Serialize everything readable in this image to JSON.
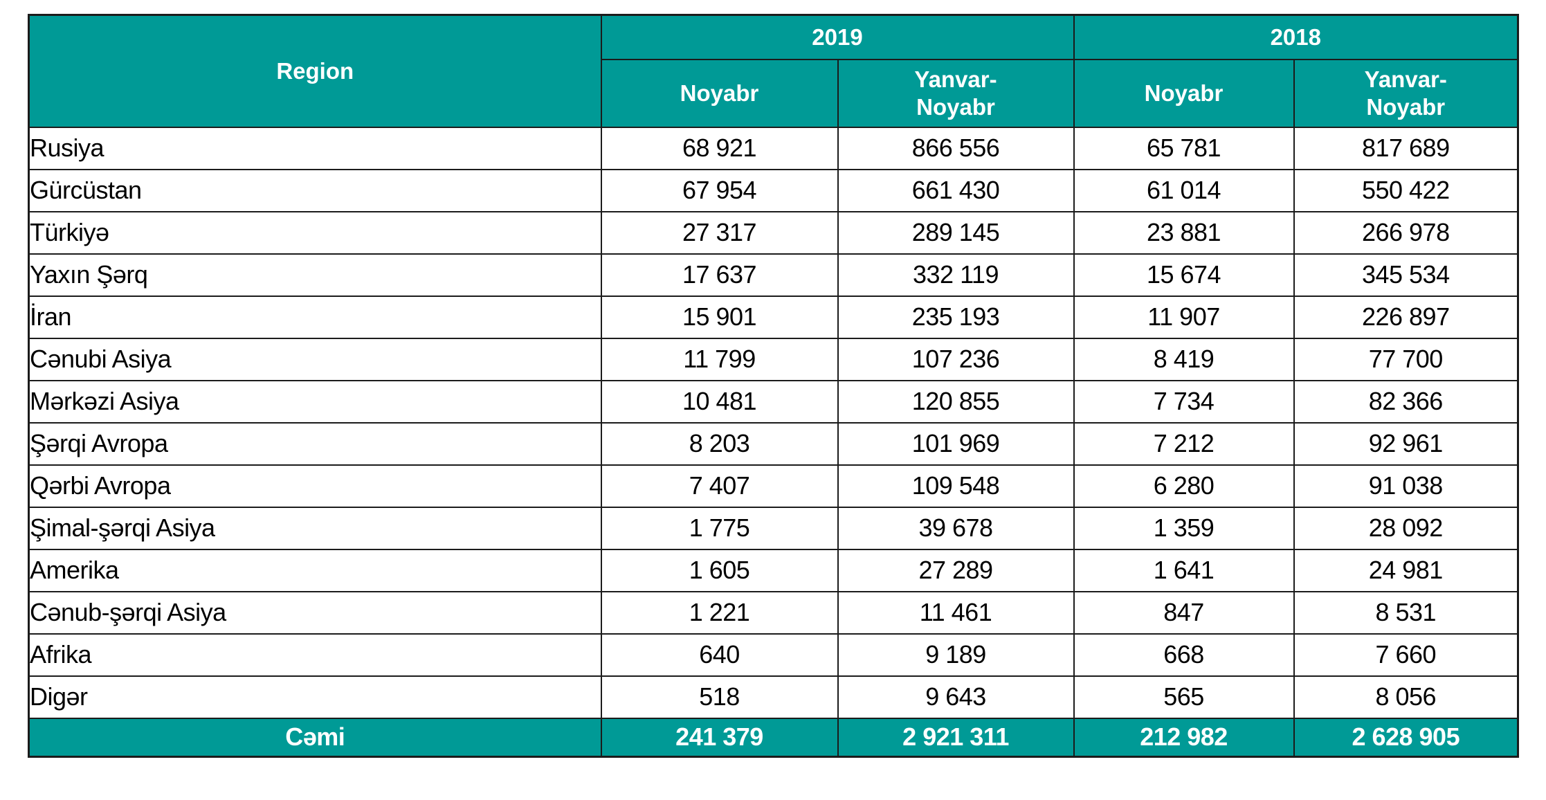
{
  "table": {
    "region_header": "Region",
    "year_groups": [
      {
        "year": "2019",
        "sub_columns": [
          "Noyabr",
          "Yanvar-\nNoyabr"
        ]
      },
      {
        "year": "2018",
        "sub_columns": [
          "Noyabr",
          "Yanvar-\nNoyabr"
        ]
      }
    ],
    "rows": [
      {
        "region": "Rusiya",
        "values": [
          "68 921",
          "866 556",
          "65 781",
          "817 689"
        ]
      },
      {
        "region": "Gürcüstan",
        "values": [
          "67 954",
          "661 430",
          "61 014",
          "550 422"
        ]
      },
      {
        "region": "Türkiyə",
        "values": [
          "27 317",
          "289 145",
          "23 881",
          "266 978"
        ]
      },
      {
        "region": "Yaxın Şərq",
        "values": [
          "17 637",
          "332 119",
          "15 674",
          "345 534"
        ]
      },
      {
        "region": "İran",
        "values": [
          "15 901",
          "235 193",
          "11 907",
          "226 897"
        ]
      },
      {
        "region": "Cənubi Asiya",
        "values": [
          "11 799",
          "107 236",
          "8 419",
          "77 700"
        ]
      },
      {
        "region": "Mərkəzi Asiya",
        "values": [
          "10 481",
          "120 855",
          "7 734",
          "82 366"
        ]
      },
      {
        "region": "Şərqi Avropa",
        "values": [
          "8 203",
          "101 969",
          "7 212",
          "92 961"
        ]
      },
      {
        "region": "Qərbi Avropa",
        "values": [
          "7 407",
          "109 548",
          "6 280",
          "91 038"
        ]
      },
      {
        "region": "Şimal-şərqi Asiya",
        "values": [
          "1 775",
          "39 678",
          "1 359",
          "28 092"
        ]
      },
      {
        "region": "Amerika",
        "values": [
          "1 605",
          "27 289",
          "1 641",
          "24 981"
        ]
      },
      {
        "region": "Cənub-şərqi Asiya",
        "values": [
          "1 221",
          "11 461",
          "847",
          "8 531"
        ]
      },
      {
        "region": "Afrika",
        "values": [
          "640",
          "9 189",
          "668",
          "7 660"
        ]
      },
      {
        "region": "Digər",
        "values": [
          "518",
          "9 643",
          "565",
          "8 056"
        ]
      }
    ],
    "footer": {
      "label": "Cəmi",
      "values": [
        "241 379",
        "2 921 311",
        "212 982",
        "2 628 905"
      ]
    }
  },
  "colors": {
    "header_bg": "#009A96",
    "header_text": "#ffffff",
    "border": "#1b1b1b",
    "body_text": "#000000"
  },
  "chart_data": {
    "type": "table",
    "title": "",
    "columns": [
      "Region",
      "2019 Noyabr",
      "2019 Yanvar-Noyabr",
      "2018 Noyabr",
      "2018 Yanvar-Noyabr"
    ],
    "rows": [
      [
        "Rusiya",
        68921,
        866556,
        65781,
        817689
      ],
      [
        "Gürcüstan",
        67954,
        661430,
        61014,
        550422
      ],
      [
        "Türkiyə",
        27317,
        289145,
        23881,
        266978
      ],
      [
        "Yaxın Şərq",
        17637,
        332119,
        15674,
        345534
      ],
      [
        "İran",
        15901,
        235193,
        11907,
        226897
      ],
      [
        "Cənubi Asiya",
        11799,
        107236,
        8419,
        77700
      ],
      [
        "Mərkəzi Asiya",
        10481,
        120855,
        7734,
        82366
      ],
      [
        "Şərqi Avropa",
        8203,
        101969,
        7212,
        92961
      ],
      [
        "Qərbi Avropa",
        7407,
        109548,
        6280,
        91038
      ],
      [
        "Şimal-şərqi Asiya",
        1775,
        39678,
        1359,
        28092
      ],
      [
        "Amerika",
        1605,
        27289,
        1641,
        24981
      ],
      [
        "Cənub-şərqi Asiya",
        1221,
        11461,
        847,
        8531
      ],
      [
        "Afrika",
        640,
        9189,
        668,
        7660
      ],
      [
        "Digər",
        518,
        9643,
        565,
        8056
      ]
    ],
    "total_row": [
      "Cəmi",
      241379,
      2921311,
      212982,
      2628905
    ]
  }
}
